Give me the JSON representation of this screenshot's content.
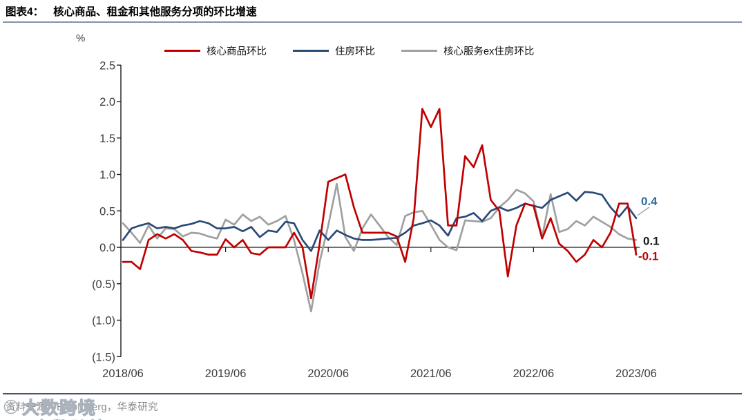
{
  "header": {
    "title_prefix": "图表4：",
    "title": "核心商品、租金和其他服务分项的环比增速"
  },
  "unit_label": "%",
  "legend": [
    {
      "key": "core-goods",
      "label": "核心商品环比",
      "color": "#c00000"
    },
    {
      "key": "housing",
      "label": "住房环比",
      "color": "#2a4a77"
    },
    {
      "key": "core-services-ex-housing",
      "label": "核心服务ex住房环比",
      "color": "#a0a0a0"
    }
  ],
  "footer": {
    "source": "资料来源：Bloomberg，华泰研究",
    "watermark": "大数跨境"
  },
  "chart_data": {
    "type": "line",
    "title": "核心商品、租金和其他服务分项的环比增速",
    "unit": "%",
    "frequency": "monthly",
    "start_month": "2018/06",
    "end_month": "2023/06",
    "x_ticks": [
      "2018/06",
      "2019/06",
      "2020/06",
      "2021/06",
      "2022/06",
      "2023/06"
    ],
    "y_tick_labels": [
      "2.5",
      "2.0",
      "1.5",
      "1.0",
      "0.5",
      "0.0",
      "(0.5)",
      "(1.0)",
      "(1.5)"
    ],
    "y_tick_values": [
      2.5,
      2.0,
      1.5,
      1.0,
      0.5,
      0.0,
      -0.5,
      -1.0,
      -1.5
    ],
    "ylim": [
      -1.5,
      2.5
    ],
    "grid": false,
    "legend_position": "top",
    "series": [
      {
        "key": "core-services-ex-housing",
        "name": "核心服务ex住房环比",
        "color": "#a0a0a0",
        "end_label": "0.1",
        "end_label_color": "#1a1a1a",
        "values": [
          0.33,
          0.2,
          0.06,
          0.3,
          0.12,
          0.26,
          0.25,
          0.15,
          0.2,
          0.19,
          0.15,
          0.12,
          0.38,
          0.31,
          0.45,
          0.36,
          0.42,
          0.31,
          0.36,
          0.43,
          0.1,
          -0.36,
          -0.88,
          -0.2,
          0.3,
          0.87,
          0.14,
          -0.05,
          0.26,
          0.45,
          0.3,
          0.14,
          0.03,
          0.43,
          0.48,
          0.5,
          0.31,
          0.1,
          0.0,
          -0.04,
          0.37,
          0.36,
          0.35,
          0.4,
          0.55,
          0.65,
          0.79,
          0.74,
          0.63,
          0.14,
          0.73,
          0.21,
          0.25,
          0.36,
          0.3,
          0.42,
          0.35,
          0.28,
          0.18,
          0.12,
          0.1
        ]
      },
      {
        "key": "housing",
        "name": "住房环比",
        "color": "#2a4a77",
        "end_label": "0.4",
        "end_label_color": "#2e6da4",
        "values": [
          0.1,
          0.26,
          0.3,
          0.33,
          0.26,
          0.28,
          0.26,
          0.3,
          0.32,
          0.36,
          0.33,
          0.26,
          0.26,
          0.28,
          0.22,
          0.28,
          0.14,
          0.23,
          0.21,
          0.35,
          0.33,
          0.1,
          -0.05,
          0.23,
          0.1,
          0.23,
          0.17,
          0.12,
          0.1,
          0.1,
          0.11,
          0.12,
          0.13,
          0.2,
          0.3,
          0.33,
          0.37,
          0.3,
          0.16,
          0.4,
          0.42,
          0.47,
          0.36,
          0.5,
          0.55,
          0.5,
          0.54,
          0.6,
          0.57,
          0.54,
          0.65,
          0.7,
          0.75,
          0.64,
          0.76,
          0.75,
          0.72,
          0.55,
          0.42,
          0.56,
          0.4
        ]
      },
      {
        "key": "core-goods",
        "name": "核心商品环比",
        "color": "#c00000",
        "end_label": "-0.1",
        "end_label_color": "#c00000",
        "values": [
          -0.2,
          -0.2,
          -0.3,
          0.1,
          0.18,
          0.12,
          0.18,
          0.1,
          -0.05,
          -0.07,
          -0.1,
          -0.1,
          0.11,
          0.0,
          0.1,
          -0.08,
          -0.1,
          0.0,
          0.0,
          0.0,
          0.2,
          0.0,
          -0.7,
          0.05,
          0.9,
          0.95,
          1.0,
          0.55,
          0.2,
          0.2,
          0.2,
          0.2,
          0.15,
          -0.2,
          0.4,
          1.9,
          1.65,
          1.9,
          0.3,
          0.3,
          1.25,
          1.1,
          1.4,
          0.65,
          0.5,
          -0.4,
          0.3,
          0.6,
          0.57,
          0.12,
          0.4,
          0.05,
          -0.05,
          -0.2,
          -0.1,
          0.1,
          0.0,
          0.2,
          0.6,
          0.6,
          -0.1
        ]
      }
    ]
  }
}
